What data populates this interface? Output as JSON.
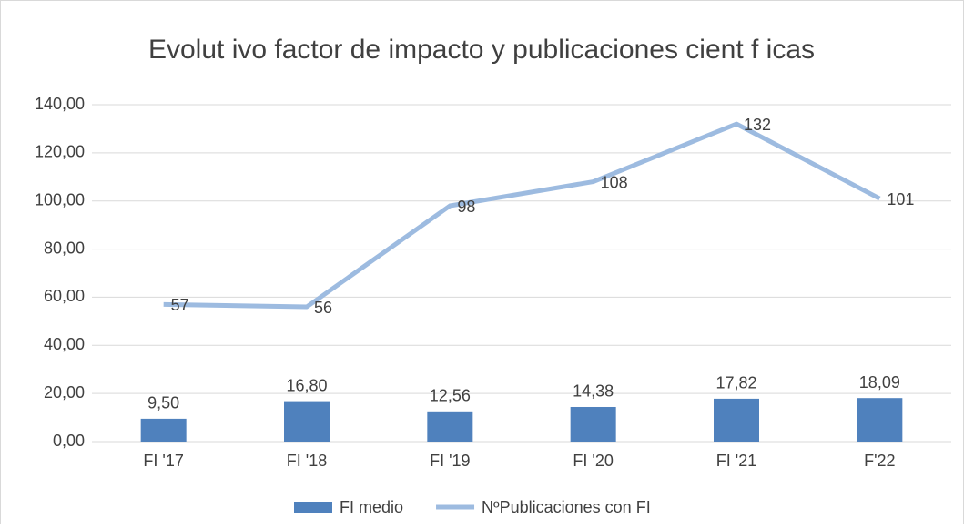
{
  "chart_data": {
    "type": "bar",
    "title": "Evolut ivo factor de impacto y publicaciones cient f icas",
    "categories": [
      "FI '17",
      "FI '18",
      "FI '19",
      "FI '20",
      "FI '21",
      "F'22"
    ],
    "series": [
      {
        "name": "FI medio",
        "type": "bar",
        "color": "#4f81bd",
        "values": [
          9.5,
          16.8,
          12.56,
          14.38,
          17.82,
          18.09
        ],
        "value_labels": [
          "9,50",
          "16,80",
          "12,56",
          "14,38",
          "17,82",
          "18,09"
        ]
      },
      {
        "name": "NºPublicaciones con FI",
        "type": "line",
        "color": "#9dbbe0",
        "values": [
          57,
          56,
          98,
          108,
          132,
          101
        ]
      }
    ],
    "ylim": [
      0,
      140
    ],
    "yticks": [
      {
        "value": 0,
        "label": "0,00"
      },
      {
        "value": 20,
        "label": "20,00"
      },
      {
        "value": 40,
        "label": "40,00"
      },
      {
        "value": 60,
        "label": "60,00"
      },
      {
        "value": 80,
        "label": "80,00"
      },
      {
        "value": 100,
        "label": "100,00"
      },
      {
        "value": 120,
        "label": "120,00"
      },
      {
        "value": 140,
        "label": "140,00"
      }
    ],
    "grid": true,
    "legend": "bottom"
  }
}
